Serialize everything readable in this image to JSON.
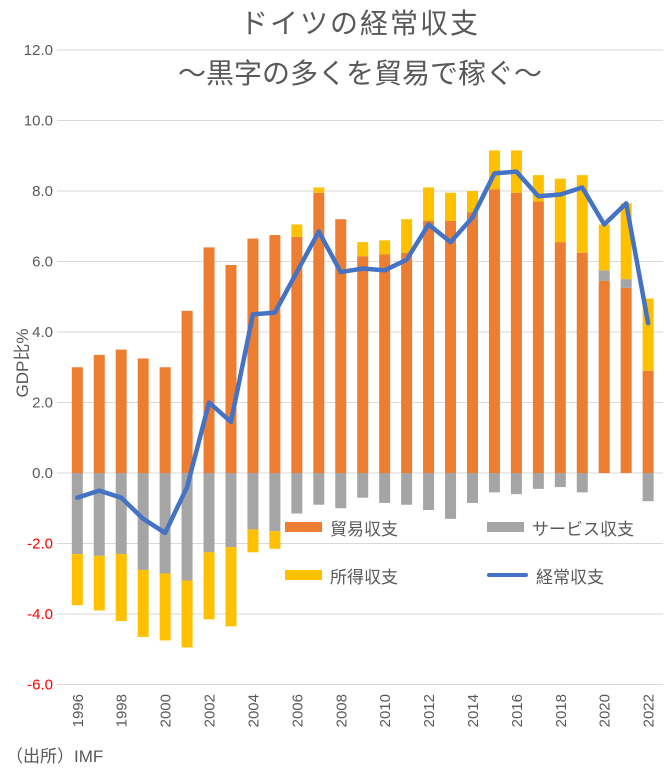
{
  "chart_data": {
    "type": "bar",
    "subtype": "stacked-bars-with-line-overlay",
    "title": "ドイツの経常収支",
    "subtitle": "～黒字の多くを貿易で稼ぐ～",
    "ylabel": "GDP比%",
    "ylim": [
      -6.0,
      12.0
    ],
    "ytick_step": 2.0,
    "yticks": [
      "12.0",
      "10.0",
      "8.0",
      "6.0",
      "4.0",
      "2.0",
      "0.0",
      "-2.0",
      "-4.0",
      "-6.0"
    ],
    "xtick_labels": [
      "1996",
      "1998",
      "2000",
      "2002",
      "2004",
      "2006",
      "2008",
      "2010",
      "2012",
      "2014",
      "2016",
      "2018",
      "2020",
      "2022"
    ],
    "grid": true,
    "legend_position": "inside-plot-two-rows",
    "colors": {
      "trade": "#ED7D31",
      "services": "#A5A5A5",
      "income": "#FFC000",
      "current_account": "#4472C4",
      "gridline": "#D9D9D9",
      "tick_text": "#595959",
      "negative_tick_text": "#FF0000",
      "title_text": "#595959"
    },
    "categories": [
      1996,
      1997,
      1998,
      1999,
      2000,
      2001,
      2002,
      2003,
      2004,
      2005,
      2006,
      2007,
      2008,
      2009,
      2010,
      2011,
      2012,
      2013,
      2014,
      2015,
      2016,
      2017,
      2018,
      2019,
      2020,
      2021,
      2022
    ],
    "series": [
      {
        "name": "貿易収支",
        "type": "bar",
        "color": "#ED7D31",
        "values": [
          3.0,
          3.35,
          3.5,
          3.25,
          3.0,
          4.6,
          6.4,
          5.9,
          6.65,
          6.75,
          6.7,
          7.95,
          7.2,
          6.15,
          6.2,
          6.25,
          7.15,
          7.15,
          7.4,
          8.05,
          7.95,
          7.7,
          6.55,
          6.25,
          5.45,
          5.25,
          2.9
        ]
      },
      {
        "name": "サービス収支",
        "type": "bar",
        "color": "#A5A5A5",
        "values": [
          -2.3,
          -2.35,
          -2.3,
          -2.75,
          -2.85,
          -3.05,
          -2.25,
          -2.1,
          -1.6,
          -1.65,
          -1.15,
          -0.9,
          -1.0,
          -0.7,
          -0.85,
          -0.9,
          -1.05,
          -1.3,
          -0.85,
          -0.55,
          -0.6,
          -0.45,
          -0.4,
          -0.55,
          0.3,
          0.25,
          -0.8
        ]
      },
      {
        "name": "所得収支",
        "type": "bar",
        "color": "#FFC000",
        "values": [
          -1.45,
          -1.55,
          -1.9,
          -1.9,
          -1.9,
          -1.9,
          -1.9,
          -2.25,
          -0.65,
          -0.5,
          0.35,
          0.15,
          0.0,
          0.4,
          0.4,
          0.95,
          0.95,
          0.8,
          0.6,
          1.1,
          1.2,
          0.75,
          1.8,
          2.2,
          1.3,
          2.15,
          2.05
        ]
      },
      {
        "name": "経常収支",
        "type": "line",
        "color": "#4472C4",
        "values": [
          -0.7,
          -0.5,
          -0.7,
          -1.3,
          -1.7,
          -0.4,
          2.0,
          1.45,
          4.5,
          4.55,
          5.7,
          6.85,
          5.7,
          5.8,
          5.75,
          6.05,
          7.05,
          6.55,
          7.25,
          8.5,
          8.55,
          7.85,
          7.9,
          8.1,
          7.05,
          7.65,
          4.25
        ]
      }
    ],
    "source": "（出所）IMF"
  }
}
